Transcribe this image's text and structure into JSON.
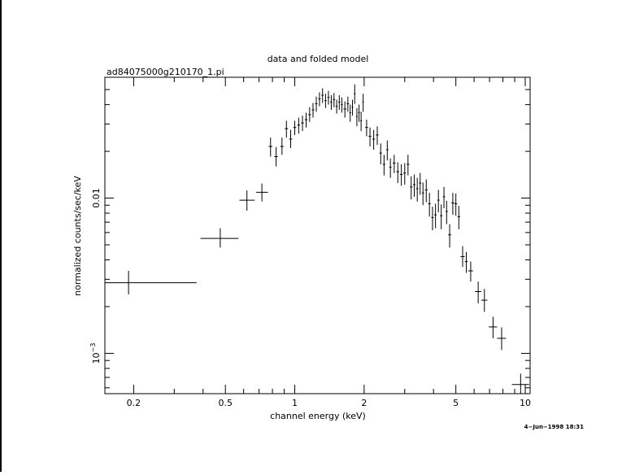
{
  "chart_data": {
    "type": "scatter",
    "title": "data and folded model",
    "subtitle": "ad84075000g210170_1.pi",
    "xlabel": "channel energy (keV)",
    "ylabel": "normalized counts/sec/keV",
    "timestamp": "4−Jun−1998 18:31",
    "x_scale": "log",
    "y_scale": "log",
    "xlim": [
      0.15,
      10.5
    ],
    "ylim": [
      0.00055,
      0.06
    ],
    "grid": false,
    "x_ticks": [
      {
        "value": 0.2,
        "label": "0.2"
      },
      {
        "value": 0.5,
        "label": "0.5"
      },
      {
        "value": 1,
        "label": "1"
      },
      {
        "value": 2,
        "label": "2"
      },
      {
        "value": 5,
        "label": "5"
      },
      {
        "value": 10,
        "label": "10"
      }
    ],
    "y_ticks": [
      {
        "value": 0.01,
        "label": "0.01"
      },
      {
        "value": 0.001,
        "label": "10",
        "exponent": "−3"
      }
    ],
    "series": [
      {
        "color": "#000000",
        "points": [
          {
            "x": 0.19,
            "xlo": 0.15,
            "xhi": 0.375,
            "y": 0.00285,
            "ylo": 0.0024,
            "yhi": 0.0034
          },
          {
            "x": 0.475,
            "xlo": 0.39,
            "xhi": 0.57,
            "y": 0.0055,
            "ylo": 0.0048,
            "yhi": 0.0064
          },
          {
            "x": 0.62,
            "xlo": 0.575,
            "xhi": 0.67,
            "y": 0.0097,
            "ylo": 0.0083,
            "yhi": 0.0112
          },
          {
            "x": 0.72,
            "xlo": 0.68,
            "xhi": 0.765,
            "y": 0.0109,
            "ylo": 0.0095,
            "yhi": 0.0124
          },
          {
            "x": 0.785,
            "xlo": 0.77,
            "xhi": 0.8,
            "y": 0.0215,
            "ylo": 0.0185,
            "yhi": 0.0245
          },
          {
            "x": 0.83,
            "xlo": 0.815,
            "xhi": 0.845,
            "y": 0.0185,
            "ylo": 0.016,
            "yhi": 0.0213
          },
          {
            "x": 0.88,
            "xlo": 0.865,
            "xhi": 0.895,
            "y": 0.0215,
            "ylo": 0.019,
            "yhi": 0.0245
          },
          {
            "x": 0.92,
            "xlo": 0.905,
            "xhi": 0.935,
            "y": 0.028,
            "ylo": 0.0245,
            "yhi": 0.0315
          },
          {
            "x": 0.96,
            "xlo": 0.945,
            "xhi": 0.975,
            "y": 0.024,
            "ylo": 0.021,
            "yhi": 0.0275
          },
          {
            "x": 1.0,
            "xlo": 0.985,
            "xhi": 1.015,
            "y": 0.0285,
            "ylo": 0.0255,
            "yhi": 0.0315
          },
          {
            "x": 1.04,
            "xlo": 1.025,
            "xhi": 1.055,
            "y": 0.0295,
            "ylo": 0.026,
            "yhi": 0.033
          },
          {
            "x": 1.08,
            "xlo": 1.065,
            "xhi": 1.095,
            "y": 0.0305,
            "ylo": 0.027,
            "yhi": 0.034
          },
          {
            "x": 1.12,
            "xlo": 1.105,
            "xhi": 1.135,
            "y": 0.032,
            "ylo": 0.0285,
            "yhi": 0.0355
          },
          {
            "x": 1.16,
            "xlo": 1.145,
            "xhi": 1.175,
            "y": 0.0345,
            "ylo": 0.031,
            "yhi": 0.0385
          },
          {
            "x": 1.2,
            "xlo": 1.185,
            "xhi": 1.215,
            "y": 0.037,
            "ylo": 0.033,
            "yhi": 0.041
          },
          {
            "x": 1.24,
            "xlo": 1.225,
            "xhi": 1.255,
            "y": 0.0405,
            "ylo": 0.036,
            "yhi": 0.045
          },
          {
            "x": 1.28,
            "xlo": 1.265,
            "xhi": 1.295,
            "y": 0.0435,
            "ylo": 0.039,
            "yhi": 0.048
          },
          {
            "x": 1.32,
            "xlo": 1.305,
            "xhi": 1.335,
            "y": 0.046,
            "ylo": 0.041,
            "yhi": 0.051
          },
          {
            "x": 1.36,
            "xlo": 1.345,
            "xhi": 1.375,
            "y": 0.0425,
            "ylo": 0.038,
            "yhi": 0.047
          },
          {
            "x": 1.4,
            "xlo": 1.385,
            "xhi": 1.415,
            "y": 0.0445,
            "ylo": 0.04,
            "yhi": 0.049
          },
          {
            "x": 1.44,
            "xlo": 1.425,
            "xhi": 1.455,
            "y": 0.0415,
            "ylo": 0.037,
            "yhi": 0.046
          },
          {
            "x": 1.48,
            "xlo": 1.465,
            "xhi": 1.495,
            "y": 0.043,
            "ylo": 0.0385,
            "yhi": 0.0475
          },
          {
            "x": 1.52,
            "xlo": 1.505,
            "xhi": 1.535,
            "y": 0.039,
            "ylo": 0.035,
            "yhi": 0.043
          },
          {
            "x": 1.56,
            "xlo": 1.545,
            "xhi": 1.575,
            "y": 0.0415,
            "ylo": 0.037,
            "yhi": 0.046
          },
          {
            "x": 1.6,
            "xlo": 1.585,
            "xhi": 1.615,
            "y": 0.04,
            "ylo": 0.0355,
            "yhi": 0.0445
          },
          {
            "x": 1.65,
            "xlo": 1.625,
            "xhi": 1.675,
            "y": 0.0375,
            "ylo": 0.033,
            "yhi": 0.042
          },
          {
            "x": 1.7,
            "xlo": 1.68,
            "xhi": 1.72,
            "y": 0.0405,
            "ylo": 0.036,
            "yhi": 0.045
          },
          {
            "x": 1.74,
            "xlo": 1.725,
            "xhi": 1.755,
            "y": 0.0355,
            "ylo": 0.031,
            "yhi": 0.04
          },
          {
            "x": 1.78,
            "xlo": 1.765,
            "xhi": 1.795,
            "y": 0.0385,
            "ylo": 0.034,
            "yhi": 0.043
          },
          {
            "x": 1.82,
            "xlo": 1.805,
            "xhi": 1.835,
            "y": 0.047,
            "ylo": 0.0405,
            "yhi": 0.054
          },
          {
            "x": 1.86,
            "xlo": 1.845,
            "xhi": 1.875,
            "y": 0.0335,
            "ylo": 0.029,
            "yhi": 0.038
          },
          {
            "x": 1.9,
            "xlo": 1.885,
            "xhi": 1.915,
            "y": 0.0355,
            "ylo": 0.031,
            "yhi": 0.04
          },
          {
            "x": 1.94,
            "xlo": 1.925,
            "xhi": 1.955,
            "y": 0.0315,
            "ylo": 0.027,
            "yhi": 0.036
          },
          {
            "x": 1.98,
            "xlo": 1.965,
            "xhi": 1.995,
            "y": 0.0415,
            "ylo": 0.036,
            "yhi": 0.047
          },
          {
            "x": 2.05,
            "xlo": 2.02,
            "xhi": 2.08,
            "y": 0.0285,
            "ylo": 0.025,
            "yhi": 0.032
          },
          {
            "x": 2.12,
            "xlo": 2.09,
            "xhi": 2.15,
            "y": 0.025,
            "ylo": 0.0215,
            "yhi": 0.0285
          },
          {
            "x": 2.2,
            "xlo": 2.17,
            "xhi": 2.23,
            "y": 0.024,
            "ylo": 0.0205,
            "yhi": 0.0275
          },
          {
            "x": 2.28,
            "xlo": 2.25,
            "xhi": 2.31,
            "y": 0.0255,
            "ylo": 0.022,
            "yhi": 0.029
          },
          {
            "x": 2.36,
            "xlo": 2.33,
            "xhi": 2.39,
            "y": 0.0195,
            "ylo": 0.0165,
            "yhi": 0.0225
          },
          {
            "x": 2.44,
            "xlo": 2.41,
            "xhi": 2.47,
            "y": 0.0165,
            "ylo": 0.014,
            "yhi": 0.019
          },
          {
            "x": 2.52,
            "xlo": 2.49,
            "xhi": 2.55,
            "y": 0.0205,
            "ylo": 0.0175,
            "yhi": 0.0235
          },
          {
            "x": 2.6,
            "xlo": 2.57,
            "xhi": 2.63,
            "y": 0.0158,
            "ylo": 0.0135,
            "yhi": 0.018
          },
          {
            "x": 2.7,
            "xlo": 2.66,
            "xhi": 2.74,
            "y": 0.0168,
            "ylo": 0.0145,
            "yhi": 0.019
          },
          {
            "x": 2.8,
            "xlo": 2.76,
            "xhi": 2.84,
            "y": 0.0148,
            "ylo": 0.0125,
            "yhi": 0.017
          },
          {
            "x": 2.9,
            "xlo": 2.86,
            "xhi": 2.94,
            "y": 0.0142,
            "ylo": 0.012,
            "yhi": 0.0165
          },
          {
            "x": 3.0,
            "xlo": 2.96,
            "xhi": 3.04,
            "y": 0.0145,
            "ylo": 0.0122,
            "yhi": 0.0168
          },
          {
            "x": 3.1,
            "xlo": 3.06,
            "xhi": 3.14,
            "y": 0.0165,
            "ylo": 0.014,
            "yhi": 0.019
          },
          {
            "x": 3.2,
            "xlo": 3.16,
            "xhi": 3.24,
            "y": 0.0118,
            "ylo": 0.0098,
            "yhi": 0.0138
          },
          {
            "x": 3.3,
            "xlo": 3.26,
            "xhi": 3.34,
            "y": 0.0122,
            "ylo": 0.0102,
            "yhi": 0.0142
          },
          {
            "x": 3.4,
            "xlo": 3.36,
            "xhi": 3.44,
            "y": 0.0115,
            "ylo": 0.0095,
            "yhi": 0.0135
          },
          {
            "x": 3.5,
            "xlo": 3.46,
            "xhi": 3.54,
            "y": 0.0125,
            "ylo": 0.0105,
            "yhi": 0.0145
          },
          {
            "x": 3.6,
            "xlo": 3.56,
            "xhi": 3.64,
            "y": 0.0108,
            "ylo": 0.009,
            "yhi": 0.0126
          },
          {
            "x": 3.72,
            "xlo": 3.67,
            "xhi": 3.77,
            "y": 0.0113,
            "ylo": 0.0094,
            "yhi": 0.0132
          },
          {
            "x": 3.84,
            "xlo": 3.79,
            "xhi": 3.89,
            "y": 0.0092,
            "ylo": 0.0076,
            "yhi": 0.0108
          },
          {
            "x": 3.96,
            "xlo": 3.91,
            "xhi": 4.01,
            "y": 0.0075,
            "ylo": 0.0062,
            "yhi": 0.0088
          },
          {
            "x": 4.08,
            "xlo": 4.03,
            "xhi": 4.13,
            "y": 0.0078,
            "ylo": 0.0064,
            "yhi": 0.0092
          },
          {
            "x": 4.2,
            "xlo": 4.15,
            "xhi": 4.25,
            "y": 0.0097,
            "ylo": 0.0081,
            "yhi": 0.0113
          },
          {
            "x": 4.32,
            "xlo": 4.27,
            "xhi": 4.37,
            "y": 0.0077,
            "ylo": 0.0063,
            "yhi": 0.0091
          },
          {
            "x": 4.44,
            "xlo": 4.39,
            "xhi": 4.49,
            "y": 0.0102,
            "ylo": 0.0086,
            "yhi": 0.0118
          },
          {
            "x": 4.56,
            "xlo": 4.51,
            "xhi": 4.61,
            "y": 0.0082,
            "ylo": 0.0068,
            "yhi": 0.0096
          },
          {
            "x": 4.7,
            "xlo": 4.63,
            "xhi": 4.77,
            "y": 0.0058,
            "ylo": 0.0048,
            "yhi": 0.0068
          },
          {
            "x": 4.85,
            "xlo": 4.78,
            "xhi": 4.92,
            "y": 0.0093,
            "ylo": 0.0078,
            "yhi": 0.0108
          },
          {
            "x": 5.0,
            "xlo": 4.93,
            "xhi": 5.07,
            "y": 0.0092,
            "ylo": 0.0077,
            "yhi": 0.0107
          },
          {
            "x": 5.15,
            "xlo": 5.08,
            "xhi": 5.22,
            "y": 0.0076,
            "ylo": 0.0063,
            "yhi": 0.0089
          },
          {
            "x": 5.35,
            "xlo": 5.24,
            "xhi": 5.46,
            "y": 0.0042,
            "ylo": 0.0036,
            "yhi": 0.0049
          },
          {
            "x": 5.55,
            "xlo": 5.47,
            "xhi": 5.63,
            "y": 0.0039,
            "ylo": 0.0033,
            "yhi": 0.0045
          },
          {
            "x": 5.8,
            "xlo": 5.66,
            "xhi": 5.94,
            "y": 0.0034,
            "ylo": 0.0029,
            "yhi": 0.0039
          },
          {
            "x": 6.25,
            "xlo": 6.05,
            "xhi": 6.45,
            "y": 0.0025,
            "ylo": 0.0021,
            "yhi": 0.0029
          },
          {
            "x": 6.65,
            "xlo": 6.45,
            "xhi": 6.85,
            "y": 0.0022,
            "ylo": 0.00185,
            "yhi": 0.0026
          },
          {
            "x": 7.25,
            "xlo": 6.95,
            "xhi": 7.55,
            "y": 0.00148,
            "ylo": 0.00125,
            "yhi": 0.00172
          },
          {
            "x": 7.9,
            "xlo": 7.55,
            "xhi": 8.25,
            "y": 0.00125,
            "ylo": 0.00105,
            "yhi": 0.00147
          },
          {
            "x": 9.55,
            "xlo": 8.75,
            "xhi": 10.4,
            "y": 0.00063,
            "ylo": 0.00055,
            "yhi": 0.00074
          }
        ]
      }
    ]
  }
}
